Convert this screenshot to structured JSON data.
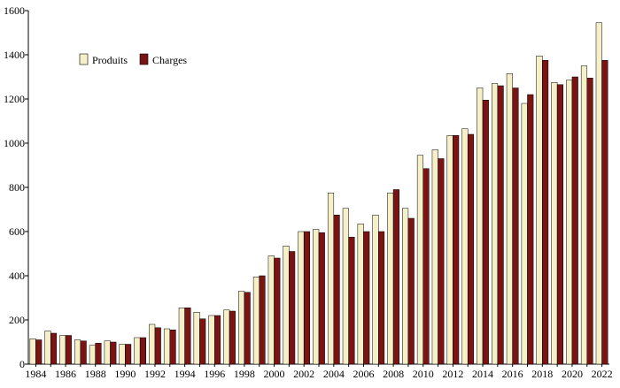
{
  "chart_data": {
    "type": "bar",
    "title": "",
    "xlabel": "",
    "ylabel": "",
    "ylim": [
      0,
      1600
    ],
    "yticks": [
      0,
      200,
      400,
      600,
      800,
      1000,
      1200,
      1400,
      1600
    ],
    "xtick_labels": [
      "1984",
      "1986",
      "1988",
      "1990",
      "1992",
      "1994",
      "1996",
      "1998",
      "2000",
      "2002",
      "2004",
      "2006",
      "2008",
      "2010",
      "2012",
      "2014",
      "2016",
      "2018",
      "2020",
      "2022"
    ],
    "categories": [
      "1984",
      "1985",
      "1986",
      "1987",
      "1988",
      "1989",
      "1990",
      "1991",
      "1992",
      "1993",
      "1994",
      "1995",
      "1996",
      "1997",
      "1998",
      "1999",
      "2000",
      "2001",
      "2002",
      "2003",
      "2004",
      "2005",
      "2006",
      "2007",
      "2008",
      "2009",
      "2010",
      "2011",
      "2012",
      "2013",
      "2014",
      "2015",
      "2016",
      "2017",
      "2018",
      "2019",
      "2020",
      "2021",
      "2022"
    ],
    "grid": false,
    "legend_position": "top-left",
    "series": [
      {
        "name": "Produits",
        "color": "#f5f0c8",
        "values": [
          115,
          150,
          130,
          110,
          85,
          105,
          90,
          120,
          180,
          160,
          255,
          235,
          220,
          245,
          330,
          395,
          490,
          535,
          600,
          610,
          775,
          705,
          635,
          675,
          775,
          705,
          945,
          970,
          1035,
          1065,
          1250,
          1270,
          1315,
          1180,
          1395,
          1275,
          1285,
          1350,
          1545
        ]
      },
      {
        "name": "Charges",
        "color": "#7a1414",
        "values": [
          110,
          140,
          130,
          105,
          95,
          100,
          90,
          120,
          165,
          155,
          255,
          205,
          220,
          240,
          325,
          400,
          480,
          510,
          600,
          595,
          675,
          575,
          600,
          600,
          790,
          660,
          885,
          930,
          1035,
          1040,
          1195,
          1260,
          1250,
          1220,
          1375,
          1265,
          1300,
          1295,
          1375
        ]
      }
    ]
  }
}
